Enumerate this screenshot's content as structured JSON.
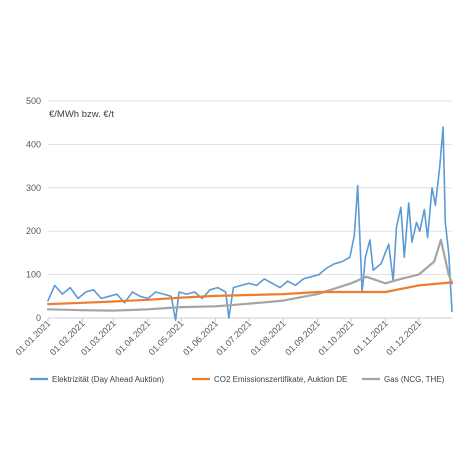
{
  "chart_data": {
    "type": "line",
    "title": "",
    "xlabel": "",
    "ylabel": "€/MWh bzw. €/t",
    "ylim": [
      0,
      500
    ],
    "yticks": [
      0,
      100,
      200,
      300,
      400,
      500
    ],
    "xticks": [
      "01.01.2021",
      "01.02.2021",
      "01.03.2021",
      "01.04.2021",
      "01.05.2021",
      "01.06.2021",
      "01.07.2021",
      "01.08.2021",
      "01.09.2021",
      "01.10.2021",
      "01.11.2021",
      "01.12.2021"
    ],
    "grid": "horizontal",
    "legend_position": "bottom",
    "series": [
      {
        "name": "Elektrizität (Day Ahead Auktion)",
        "color": "#5b9bd5",
        "points": [
          [
            "01.01.2021",
            40
          ],
          [
            "07.01.2021",
            75
          ],
          [
            "14.01.2021",
            55
          ],
          [
            "21.01.2021",
            70
          ],
          [
            "28.01.2021",
            45
          ],
          [
            "04.02.2021",
            60
          ],
          [
            "11.02.2021",
            65
          ],
          [
            "18.02.2021",
            45
          ],
          [
            "25.02.2021",
            50
          ],
          [
            "04.03.2021",
            55
          ],
          [
            "11.03.2021",
            35
          ],
          [
            "18.03.2021",
            60
          ],
          [
            "25.03.2021",
            50
          ],
          [
            "01.04.2021",
            45
          ],
          [
            "08.04.2021",
            60
          ],
          [
            "15.04.2021",
            55
          ],
          [
            "22.04.2021",
            50
          ],
          [
            "26.04.2021",
            -5
          ],
          [
            "29.04.2021",
            60
          ],
          [
            "06.05.2021",
            55
          ],
          [
            "13.05.2021",
            60
          ],
          [
            "20.05.2021",
            45
          ],
          [
            "27.05.2021",
            65
          ],
          [
            "03.06.2021",
            70
          ],
          [
            "10.06.2021",
            60
          ],
          [
            "13.06.2021",
            0
          ],
          [
            "17.06.2021",
            70
          ],
          [
            "24.06.2021",
            75
          ],
          [
            "01.07.2021",
            80
          ],
          [
            "08.07.2021",
            75
          ],
          [
            "15.07.2021",
            90
          ],
          [
            "22.07.2021",
            80
          ],
          [
            "29.07.2021",
            70
          ],
          [
            "05.08.2021",
            85
          ],
          [
            "12.08.2021",
            75
          ],
          [
            "19.08.2021",
            90
          ],
          [
            "26.08.2021",
            95
          ],
          [
            "02.09.2021",
            100
          ],
          [
            "09.09.2021",
            115
          ],
          [
            "16.09.2021",
            125
          ],
          [
            "23.09.2021",
            130
          ],
          [
            "30.09.2021",
            140
          ],
          [
            "04.10.2021",
            190
          ],
          [
            "07.10.2021",
            305
          ],
          [
            "11.10.2021",
            60
          ],
          [
            "14.10.2021",
            140
          ],
          [
            "18.10.2021",
            180
          ],
          [
            "21.10.2021",
            110
          ],
          [
            "28.10.2021",
            125
          ],
          [
            "04.11.2021",
            170
          ],
          [
            "08.11.2021",
            85
          ],
          [
            "11.11.2021",
            210
          ],
          [
            "15.11.2021",
            255
          ],
          [
            "18.11.2021",
            140
          ],
          [
            "22.11.2021",
            265
          ],
          [
            "25.11.2021",
            175
          ],
          [
            "29.11.2021",
            220
          ],
          [
            "02.12.2021",
            200
          ],
          [
            "06.12.2021",
            250
          ],
          [
            "09.12.2021",
            185
          ],
          [
            "13.12.2021",
            300
          ],
          [
            "16.12.2021",
            260
          ],
          [
            "20.12.2021",
            350
          ],
          [
            "23.12.2021",
            440
          ],
          [
            "25.12.2021",
            220
          ],
          [
            "28.12.2021",
            150
          ],
          [
            "31.12.2021",
            15
          ]
        ]
      },
      {
        "name": "CO2 Emissionszertifikate, Auktion DE",
        "color": "#ed7d31",
        "points": [
          [
            "01.01.2021",
            32
          ],
          [
            "01.02.2021",
            35
          ],
          [
            "01.03.2021",
            38
          ],
          [
            "01.04.2021",
            42
          ],
          [
            "01.05.2021",
            47
          ],
          [
            "01.06.2021",
            51
          ],
          [
            "01.07.2021",
            53
          ],
          [
            "01.08.2021",
            55
          ],
          [
            "01.09.2021",
            60
          ],
          [
            "01.10.2021",
            60
          ],
          [
            "01.11.2021",
            60
          ],
          [
            "01.12.2021",
            75
          ],
          [
            "31.12.2021",
            82
          ]
        ]
      },
      {
        "name": "Gas (NCG, THE)",
        "color": "#a5a5a5",
        "points": [
          [
            "01.01.2021",
            20
          ],
          [
            "01.02.2021",
            18
          ],
          [
            "01.03.2021",
            17
          ],
          [
            "01.04.2021",
            20
          ],
          [
            "01.05.2021",
            25
          ],
          [
            "01.06.2021",
            27
          ],
          [
            "01.07.2021",
            33
          ],
          [
            "01.08.2021",
            40
          ],
          [
            "01.09.2021",
            55
          ],
          [
            "01.10.2021",
            80
          ],
          [
            "15.10.2021",
            95
          ],
          [
            "01.11.2021",
            80
          ],
          [
            "15.11.2021",
            90
          ],
          [
            "01.12.2021",
            100
          ],
          [
            "15.12.2021",
            130
          ],
          [
            "21.12.2021",
            180
          ],
          [
            "28.12.2021",
            100
          ],
          [
            "31.12.2021",
            80
          ]
        ]
      }
    ]
  }
}
